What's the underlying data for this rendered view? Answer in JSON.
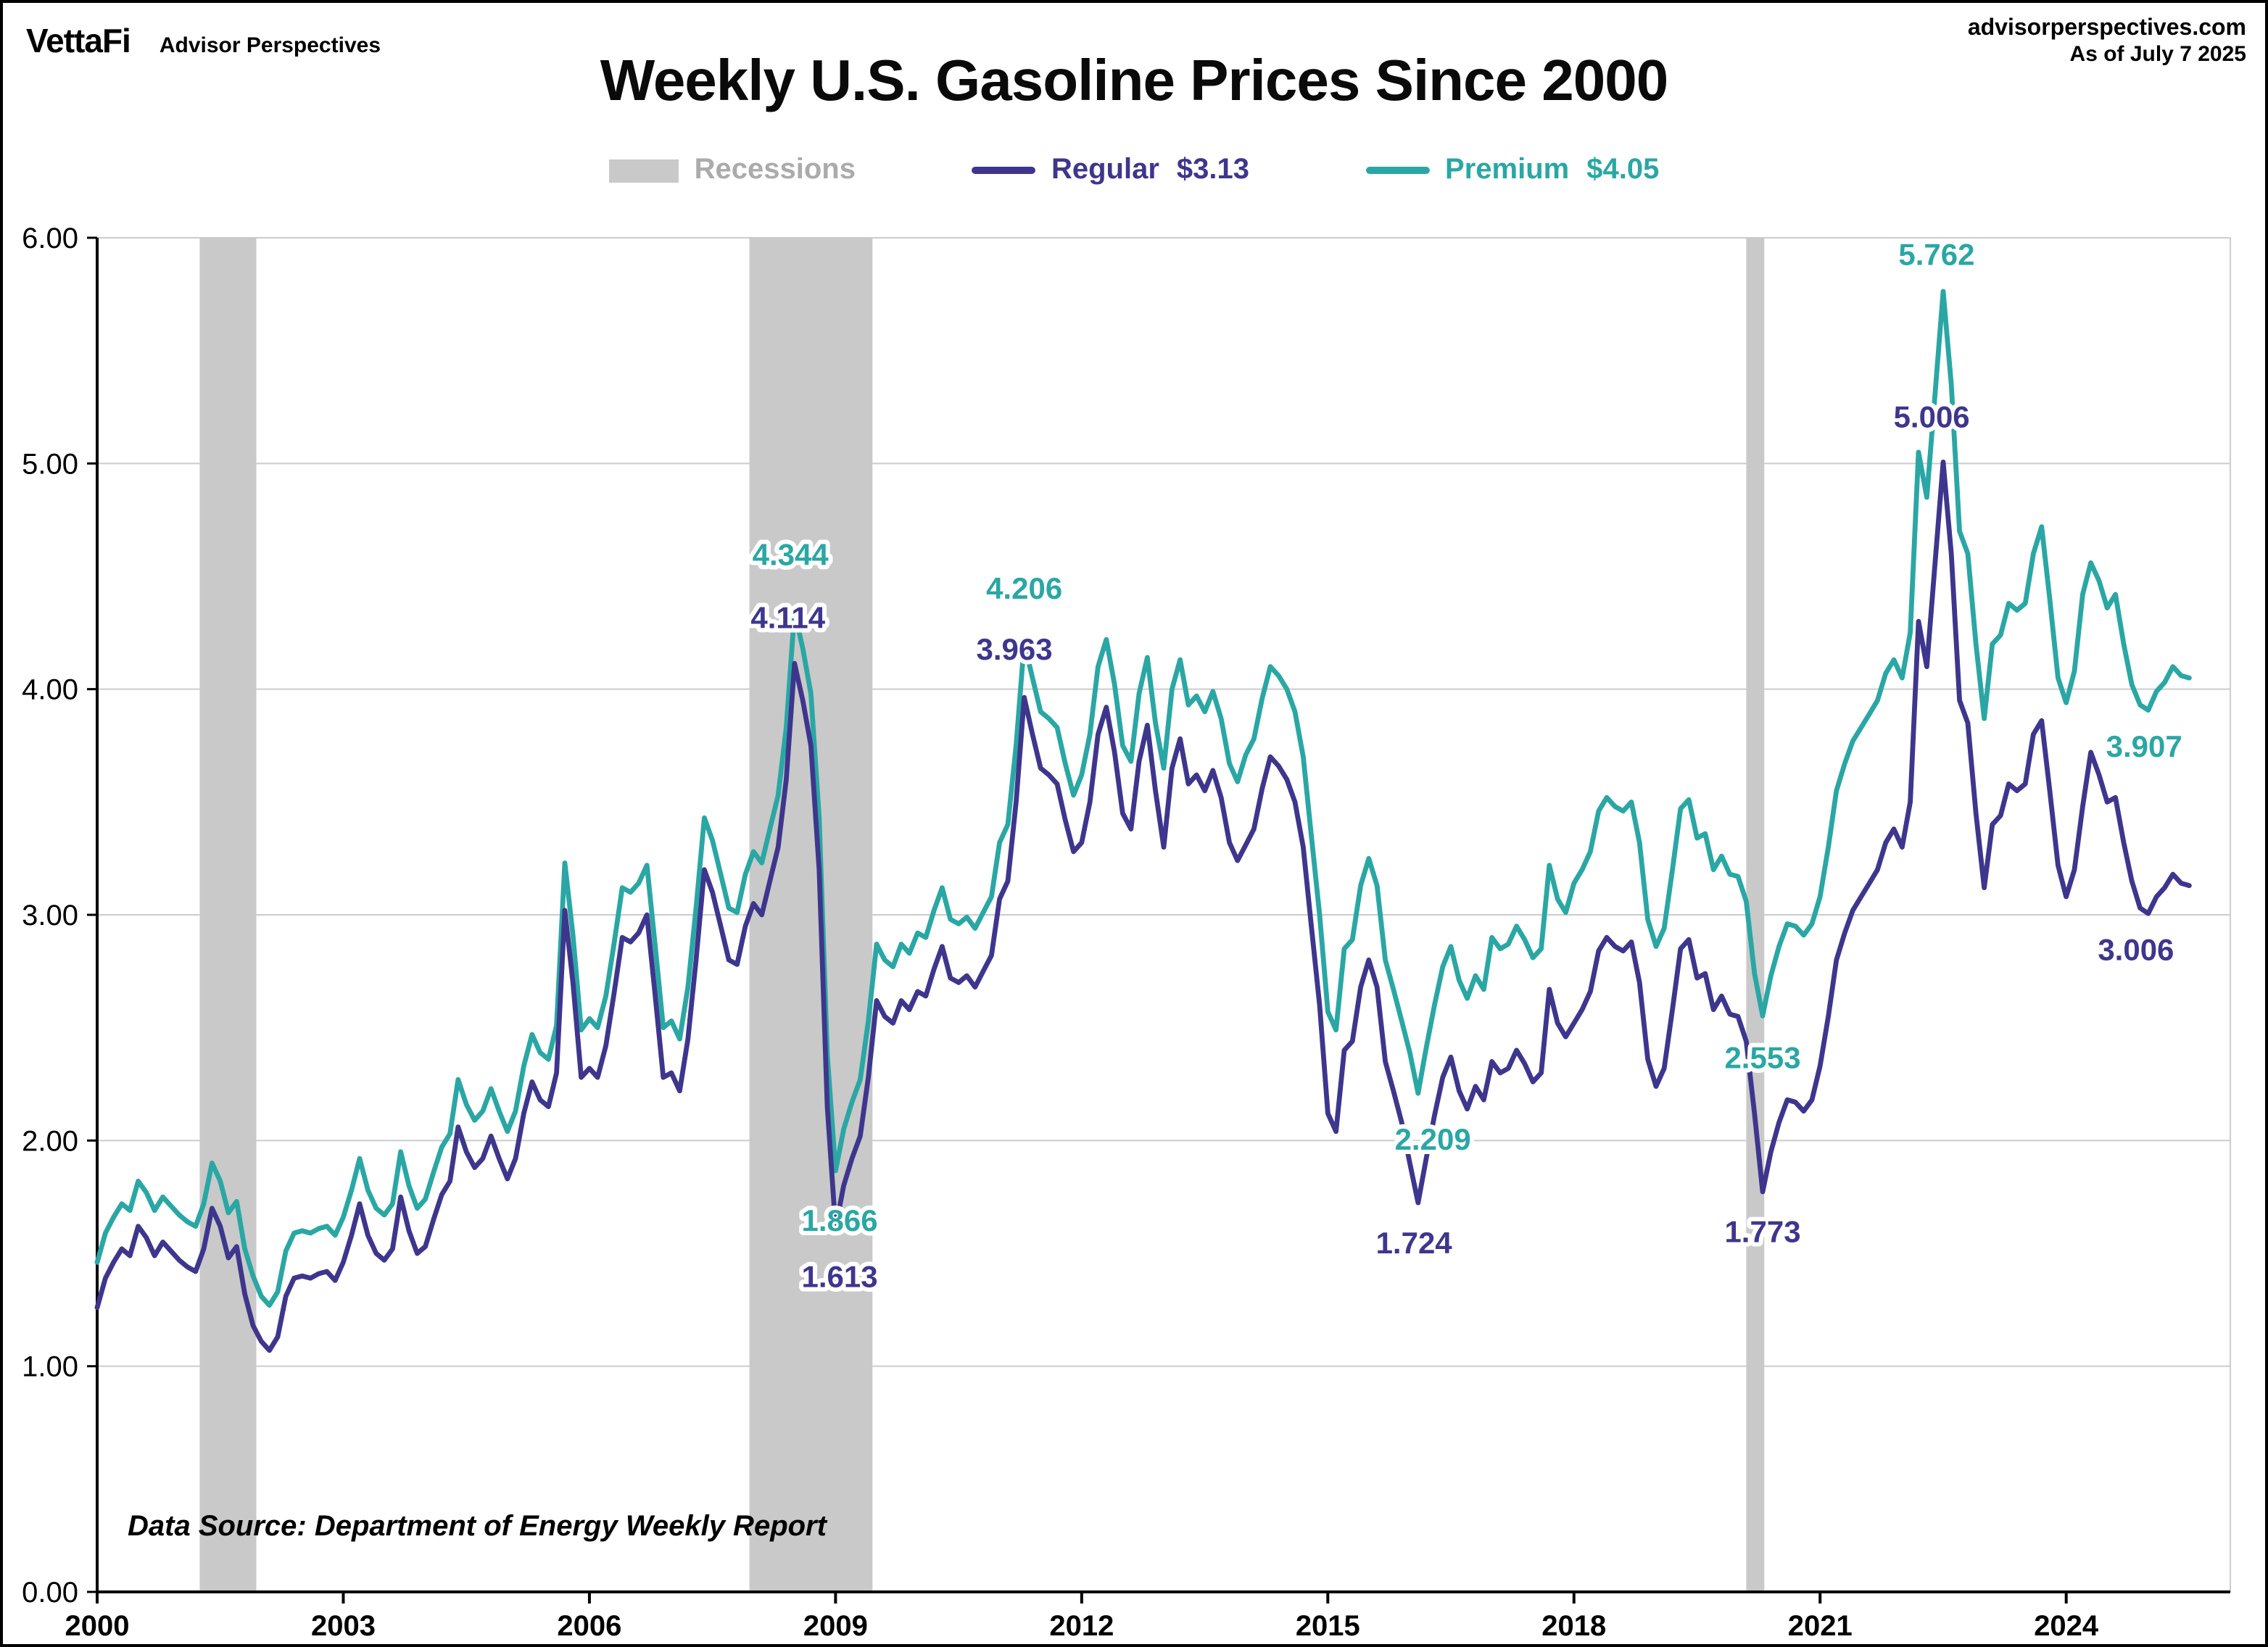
{
  "header": {
    "logo": "VettaFi",
    "logo_sub": "Advisor Perspectives",
    "site": "advisorperspectives.com",
    "as_of": "As of July 7 2025"
  },
  "title": "Weekly U.S. Gasoline Prices Since 2000",
  "legend": {
    "recessions_label": "Recessions",
    "regular_label": "Regular",
    "regular_value": "$3.13",
    "premium_label": "Premium",
    "premium_value": "$4.05"
  },
  "note": "Data Source: Department of Energy Weekly Report",
  "colors": {
    "regular": "#3e368d",
    "premium": "#2aa7a4",
    "recession": "#c9c9c9",
    "grid": "#cccccc",
    "axis": "#000000",
    "legend_gray": "#ababab"
  },
  "chart_data": {
    "type": "line",
    "title": "Weekly U.S. Gasoline Prices Since 2000",
    "xlabel": "",
    "ylabel": "",
    "grid": true,
    "legend_position": "top",
    "legend_entries": [
      "Recessions",
      "Regular  $3.13",
      "Premium  $4.05"
    ],
    "x_axis": {
      "start": 2000,
      "step": 0.1,
      "domain": [
        2000,
        2026
      ],
      "tick_years": [
        2000,
        2003,
        2006,
        2009,
        2012,
        2015,
        2018,
        2021,
        2024
      ]
    },
    "y_axis": {
      "min": 0,
      "max": 6,
      "tick_step": 1,
      "tick_labels": [
        "0.00",
        "1.00",
        "2.00",
        "3.00",
        "4.00",
        "5.00",
        "6.00"
      ]
    },
    "recessions": [
      [
        2001.25,
        2001.94
      ],
      [
        2007.95,
        2009.45
      ],
      [
        2020.1,
        2020.32
      ]
    ],
    "series": [
      {
        "name": "Premium",
        "color_key": "premium",
        "latest": 4.05,
        "values": [
          1.46,
          1.59,
          1.66,
          1.72,
          1.69,
          1.82,
          1.77,
          1.69,
          1.75,
          1.71,
          1.67,
          1.64,
          1.62,
          1.72,
          1.9,
          1.82,
          1.68,
          1.73,
          1.52,
          1.4,
          1.31,
          1.27,
          1.33,
          1.51,
          1.59,
          1.6,
          1.59,
          1.61,
          1.62,
          1.58,
          1.66,
          1.78,
          1.92,
          1.78,
          1.7,
          1.67,
          1.72,
          1.95,
          1.8,
          1.7,
          1.74,
          1.86,
          1.97,
          2.03,
          2.27,
          2.16,
          2.09,
          2.13,
          2.23,
          2.13,
          2.04,
          2.13,
          2.33,
          2.47,
          2.39,
          2.36,
          2.51,
          3.23,
          2.91,
          2.49,
          2.54,
          2.5,
          2.64,
          2.87,
          3.12,
          3.1,
          3.14,
          3.22,
          2.87,
          2.5,
          2.53,
          2.45,
          2.68,
          3.03,
          3.43,
          3.33,
          3.18,
          3.03,
          3.01,
          3.18,
          3.28,
          3.23,
          3.38,
          3.53,
          3.83,
          4.344,
          4.18,
          3.98,
          3.43,
          2.38,
          1.866,
          2.05,
          2.17,
          2.27,
          2.53,
          2.87,
          2.8,
          2.77,
          2.87,
          2.83,
          2.92,
          2.9,
          3.02,
          3.12,
          2.98,
          2.96,
          2.99,
          2.94,
          3.01,
          3.08,
          3.32,
          3.4,
          3.75,
          4.206,
          4.05,
          3.9,
          3.87,
          3.83,
          3.67,
          3.53,
          3.62,
          3.8,
          4.1,
          4.22,
          4.02,
          3.75,
          3.68,
          3.98,
          4.14,
          3.85,
          3.65,
          4.0,
          4.13,
          3.93,
          3.97,
          3.9,
          3.99,
          3.87,
          3.67,
          3.59,
          3.71,
          3.78,
          3.96,
          4.1,
          4.06,
          4.0,
          3.9,
          3.7,
          3.35,
          3.0,
          2.57,
          2.49,
          2.85,
          2.89,
          3.13,
          3.25,
          3.13,
          2.8,
          2.67,
          2.53,
          2.39,
          2.209,
          2.41,
          2.6,
          2.77,
          2.86,
          2.71,
          2.63,
          2.73,
          2.67,
          2.9,
          2.85,
          2.87,
          2.95,
          2.89,
          2.81,
          2.85,
          3.22,
          3.07,
          3.01,
          3.14,
          3.2,
          3.28,
          3.46,
          3.52,
          3.48,
          3.46,
          3.5,
          3.32,
          2.98,
          2.86,
          2.94,
          3.2,
          3.47,
          3.51,
          3.34,
          3.36,
          3.2,
          3.26,
          3.18,
          3.17,
          3.06,
          2.74,
          2.553,
          2.73,
          2.86,
          2.96,
          2.95,
          2.91,
          2.96,
          3.08,
          3.3,
          3.55,
          3.67,
          3.77,
          3.83,
          3.89,
          3.95,
          4.07,
          4.13,
          4.05,
          4.25,
          5.05,
          4.85,
          5.3,
          5.762,
          5.35,
          4.7,
          4.6,
          4.2,
          3.87,
          4.2,
          4.24,
          4.38,
          4.35,
          4.38,
          4.6,
          4.72,
          4.4,
          4.05,
          3.94,
          4.08,
          4.42,
          4.56,
          4.48,
          4.36,
          4.42,
          4.2,
          4.02,
          3.93,
          3.907,
          3.99,
          4.03,
          4.1,
          4.06,
          4.05
        ]
      },
      {
        "name": "Regular",
        "color_key": "regular",
        "latest": 3.13,
        "values": [
          1.26,
          1.39,
          1.46,
          1.52,
          1.49,
          1.62,
          1.57,
          1.49,
          1.55,
          1.51,
          1.47,
          1.44,
          1.42,
          1.52,
          1.7,
          1.62,
          1.48,
          1.53,
          1.32,
          1.18,
          1.11,
          1.07,
          1.13,
          1.31,
          1.39,
          1.4,
          1.39,
          1.41,
          1.42,
          1.38,
          1.46,
          1.58,
          1.72,
          1.58,
          1.5,
          1.47,
          1.52,
          1.75,
          1.6,
          1.5,
          1.53,
          1.65,
          1.76,
          1.82,
          2.06,
          1.95,
          1.88,
          1.92,
          2.02,
          1.92,
          1.83,
          1.92,
          2.12,
          2.26,
          2.18,
          2.15,
          2.3,
          3.02,
          2.7,
          2.28,
          2.32,
          2.28,
          2.42,
          2.65,
          2.9,
          2.88,
          2.92,
          3.0,
          2.65,
          2.28,
          2.3,
          2.22,
          2.45,
          2.8,
          3.2,
          3.1,
          2.95,
          2.8,
          2.78,
          2.95,
          3.05,
          3.0,
          3.15,
          3.3,
          3.6,
          4.114,
          3.95,
          3.75,
          3.2,
          2.15,
          1.613,
          1.8,
          1.92,
          2.02,
          2.28,
          2.62,
          2.55,
          2.52,
          2.62,
          2.58,
          2.66,
          2.64,
          2.76,
          2.86,
          2.72,
          2.7,
          2.73,
          2.68,
          2.75,
          2.82,
          3.07,
          3.15,
          3.5,
          3.963,
          3.8,
          3.65,
          3.62,
          3.58,
          3.42,
          3.28,
          3.32,
          3.5,
          3.8,
          3.92,
          3.72,
          3.45,
          3.38,
          3.68,
          3.84,
          3.55,
          3.3,
          3.65,
          3.78,
          3.58,
          3.62,
          3.55,
          3.64,
          3.52,
          3.32,
          3.24,
          3.31,
          3.38,
          3.56,
          3.7,
          3.66,
          3.6,
          3.5,
          3.3,
          2.95,
          2.6,
          2.12,
          2.04,
          2.4,
          2.44,
          2.68,
          2.8,
          2.68,
          2.35,
          2.22,
          2.08,
          1.9,
          1.724,
          1.92,
          2.11,
          2.28,
          2.37,
          2.22,
          2.14,
          2.24,
          2.18,
          2.35,
          2.3,
          2.32,
          2.4,
          2.34,
          2.26,
          2.3,
          2.67,
          2.52,
          2.46,
          2.52,
          2.58,
          2.66,
          2.84,
          2.9,
          2.86,
          2.84,
          2.88,
          2.7,
          2.36,
          2.24,
          2.32,
          2.58,
          2.85,
          2.89,
          2.72,
          2.74,
          2.58,
          2.64,
          2.56,
          2.55,
          2.44,
          2.12,
          1.773,
          1.95,
          2.08,
          2.18,
          2.17,
          2.13,
          2.18,
          2.33,
          2.55,
          2.8,
          2.92,
          3.02,
          3.08,
          3.14,
          3.2,
          3.32,
          3.38,
          3.3,
          3.5,
          4.3,
          4.1,
          4.55,
          5.006,
          4.6,
          3.95,
          3.85,
          3.45,
          3.12,
          3.4,
          3.44,
          3.58,
          3.55,
          3.58,
          3.8,
          3.86,
          3.55,
          3.22,
          3.08,
          3.2,
          3.48,
          3.72,
          3.62,
          3.5,
          3.52,
          3.32,
          3.15,
          3.03,
          3.006,
          3.08,
          3.12,
          3.18,
          3.14,
          3.13
        ]
      }
    ],
    "annotations": [
      {
        "series": "premium",
        "text": "4.344",
        "x": 2008.45,
        "y": 4.55
      },
      {
        "series": "regular",
        "text": "4.114",
        "x": 2008.42,
        "y": 4.27
      },
      {
        "series": "premium",
        "text": "4.206",
        "x": 2011.3,
        "y": 4.4
      },
      {
        "series": "regular",
        "text": "3.963",
        "x": 2011.18,
        "y": 4.13
      },
      {
        "series": "premium",
        "text": "1.866",
        "x": 2009.05,
        "y": 1.6
      },
      {
        "series": "regular",
        "text": "1.613",
        "x": 2009.05,
        "y": 1.35
      },
      {
        "series": "premium",
        "text": "2.209",
        "x": 2016.28,
        "y": 1.96
      },
      {
        "series": "regular",
        "text": "1.724",
        "x": 2016.05,
        "y": 1.5
      },
      {
        "series": "premium",
        "text": "2.553",
        "x": 2020.3,
        "y": 2.32
      },
      {
        "series": "regular",
        "text": "1.773",
        "x": 2020.3,
        "y": 1.55
      },
      {
        "series": "premium",
        "text": "5.762",
        "x": 2022.42,
        "y": 5.88
      },
      {
        "series": "regular",
        "text": "5.006",
        "x": 2022.36,
        "y": 5.16
      },
      {
        "series": "premium",
        "text": "3.907",
        "x": 2024.95,
        "y": 3.7
      },
      {
        "series": "regular",
        "text": "3.006",
        "x": 2024.85,
        "y": 2.8
      }
    ]
  }
}
